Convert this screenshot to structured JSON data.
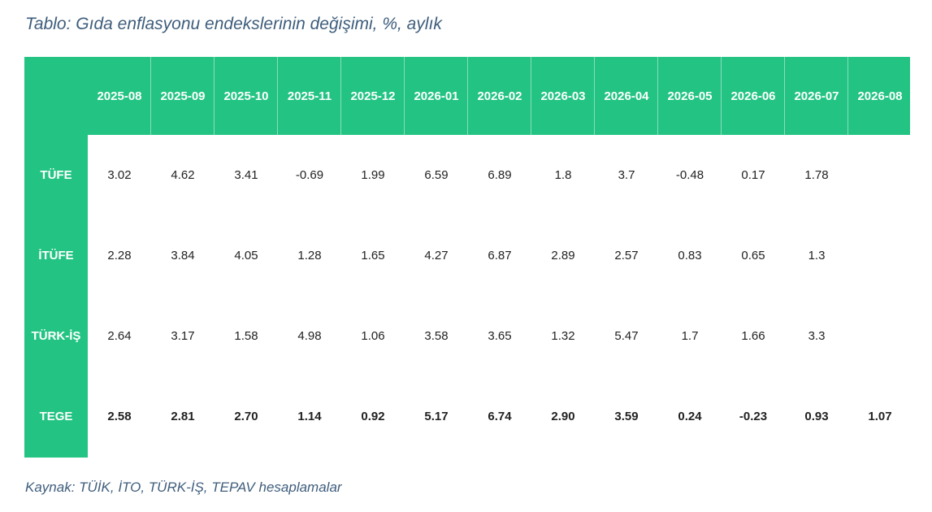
{
  "title": "Tablo: Gıda enflasyonu endekslerinin değişimi, %, aylık",
  "source": "Kaynak: TÜİK, İTO, TÜRK-İŞ, TEPAV hesaplamalar",
  "colors": {
    "header_bg": "#23c483",
    "title_text": "#3e5d7c"
  },
  "chart_data": {
    "type": "table",
    "columns": [
      "2025-08",
      "2025-09",
      "2025-10",
      "2025-11",
      "2025-12",
      "2026-01",
      "2026-02",
      "2026-03",
      "2026-04",
      "2026-05",
      "2026-06",
      "2026-07",
      "2026-08"
    ],
    "rows": [
      {
        "label": "TÜFE",
        "bold": false,
        "values": [
          "3.02",
          "4.62",
          "3.41",
          "-0.69",
          "1.99",
          "6.59",
          "6.89",
          "1.8",
          "3.7",
          "-0.48",
          "0.17",
          "1.78",
          ""
        ]
      },
      {
        "label": "İTÜFE",
        "bold": false,
        "values": [
          "2.28",
          "3.84",
          "4.05",
          "1.28",
          "1.65",
          "4.27",
          "6.87",
          "2.89",
          "2.57",
          "0.83",
          "0.65",
          "1.3",
          ""
        ]
      },
      {
        "label": "TÜRK-İŞ",
        "bold": false,
        "values": [
          "2.64",
          "3.17",
          "1.58",
          "4.98",
          "1.06",
          "3.58",
          "3.65",
          "1.32",
          "5.47",
          "1.7",
          "1.66",
          "3.3",
          ""
        ]
      },
      {
        "label": "TEGE",
        "bold": true,
        "values": [
          "2.58",
          "2.81",
          "2.70",
          "1.14",
          "0.92",
          "5.17",
          "6.74",
          "2.90",
          "3.59",
          "0.24",
          "-0.23",
          "0.93",
          "1.07"
        ]
      }
    ]
  }
}
